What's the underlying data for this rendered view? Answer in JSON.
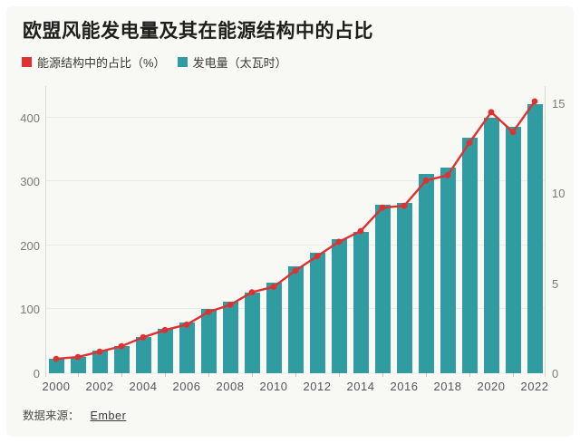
{
  "title": "欧盟风能发电量及其在能源结构中的占比",
  "legend": [
    {
      "label": "能源结构中的占比（%）",
      "color": "#e03131"
    },
    {
      "label": "发电量（太瓦时）",
      "color": "#309ba0"
    }
  ],
  "source": {
    "prefix": "数据来源：",
    "link": "Ember"
  },
  "colors": {
    "card_background": "#f8f8f5",
    "page_background": "#ffffff",
    "bar": "#309ba0",
    "line": "#e03131",
    "gridline": "#ebebe6",
    "axis_line": "#d9d9d3"
  },
  "chart_data": {
    "type": "bar",
    "title": "欧盟风能发电量及其在能源结构中的占比",
    "x": [
      2000,
      2001,
      2002,
      2003,
      2004,
      2005,
      2006,
      2007,
      2008,
      2009,
      2010,
      2011,
      2012,
      2013,
      2014,
      2015,
      2016,
      2017,
      2018,
      2019,
      2020,
      2021,
      2022
    ],
    "x_tick_labels": [
      "2000",
      "2002",
      "2004",
      "2006",
      "2008",
      "2010",
      "2012",
      "2014",
      "2016",
      "2018",
      "2020",
      "2022"
    ],
    "series": [
      {
        "name": "发电量（太瓦时）",
        "render": "bar",
        "axis": "left",
        "color": "#309ba0",
        "values": [
          22,
          26,
          35,
          43,
          57,
          69,
          79,
          100,
          112,
          126,
          141,
          167,
          188,
          209,
          221,
          264,
          267,
          312,
          321,
          368,
          400,
          385,
          420
        ]
      },
      {
        "name": "能源结构中的占比（%）",
        "render": "line",
        "axis": "right",
        "color": "#e03131",
        "values": [
          0.8,
          0.9,
          1.2,
          1.5,
          2.0,
          2.4,
          2.7,
          3.4,
          3.8,
          4.5,
          4.8,
          5.7,
          6.5,
          7.3,
          7.9,
          9.2,
          9.3,
          10.7,
          11.0,
          12.8,
          14.5,
          13.4,
          15.1
        ]
      }
    ],
    "left_axis": {
      "label": "发电量（太瓦时）",
      "ticks": [
        0,
        100,
        200,
        300,
        400
      ],
      "tick_labels": [
        "0",
        "100",
        "200",
        "300",
        "400"
      ],
      "max": 449
    },
    "right_axis": {
      "label": "能源结构中的占比（%）",
      "ticks": [
        0,
        5,
        10,
        15
      ],
      "tick_labels": [
        "0",
        "5",
        "10",
        "15"
      ],
      "max": 15.95
    },
    "grid": "horizontal",
    "legend_position": "top-left"
  }
}
